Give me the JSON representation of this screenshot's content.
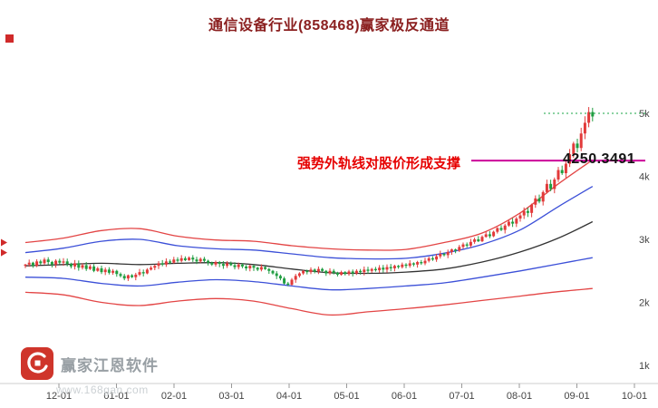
{
  "title": "通信设备行业(858468)赢家极反通道",
  "annotation": {
    "text": "强势外轨线对股价形成支撑",
    "value": "4250.3491",
    "level": 4.2504,
    "line_color": "#cc0099",
    "text_color": "#e60000"
  },
  "watermark": {
    "name": "赢家江恩软件",
    "site": "www.168gan.com"
  },
  "axes": {
    "x_labels": [
      "12-01",
      "01-01",
      "02-01",
      "03-01",
      "04-01",
      "05-01",
      "06-01",
      "07-01",
      "08-01",
      "09-01",
      "10-01"
    ],
    "y_labels": [
      {
        "label": "5k",
        "value": 5
      },
      {
        "label": "4k",
        "value": 4
      },
      {
        "label": "3k",
        "value": 3
      },
      {
        "label": "2k",
        "value": 2
      },
      {
        "label": "1k",
        "value": 1
      }
    ]
  },
  "colors": {
    "up_candle": "#e23a3a",
    "down_candle": "#1f9d40",
    "outer_line": "#e34545",
    "inner_line": "#3c50d8",
    "mid_line": "#333333",
    "dotted_resistance": "#18a544",
    "axis_line": "#cccccc",
    "tick": "#999999",
    "axis_text": "#444444",
    "marker_red": "#d02a2a"
  },
  "chart_data": {
    "type": "candlestick+lines",
    "title": "通信设备行业(858468)赢家极反通道",
    "ylim": [
      1,
      5.3
    ],
    "y_unit": "k",
    "closes": [
      2.6,
      2.63,
      2.58,
      2.65,
      2.62,
      2.68,
      2.64,
      2.6,
      2.66,
      2.63,
      2.65,
      2.61,
      2.57,
      2.62,
      2.55,
      2.59,
      2.53,
      2.57,
      2.5,
      2.54,
      2.48,
      2.52,
      2.47,
      2.5,
      2.45,
      2.42,
      2.38,
      2.43,
      2.4,
      2.44,
      2.48,
      2.46,
      2.52,
      2.55,
      2.58,
      2.62,
      2.6,
      2.65,
      2.63,
      2.68,
      2.66,
      2.7,
      2.67,
      2.71,
      2.68,
      2.65,
      2.69,
      2.66,
      2.63,
      2.6,
      2.64,
      2.61,
      2.58,
      2.62,
      2.59,
      2.56,
      2.6,
      2.57,
      2.54,
      2.58,
      2.55,
      2.52,
      2.56,
      2.53,
      2.5,
      2.46,
      2.42,
      2.38,
      2.3,
      2.28,
      2.36,
      2.42,
      2.46,
      2.5,
      2.48,
      2.52,
      2.49,
      2.53,
      2.5,
      2.46,
      2.5,
      2.47,
      2.44,
      2.48,
      2.45,
      2.49,
      2.46,
      2.5,
      2.48,
      2.52,
      2.5,
      2.53,
      2.51,
      2.55,
      2.52,
      2.56,
      2.54,
      2.58,
      2.56,
      2.6,
      2.58,
      2.62,
      2.6,
      2.64,
      2.62,
      2.66,
      2.7,
      2.68,
      2.73,
      2.77,
      2.75,
      2.8,
      2.84,
      2.82,
      2.88,
      2.92,
      2.9,
      2.96,
      3.0,
      2.97,
      3.04,
      3.08,
      3.05,
      3.12,
      3.18,
      3.15,
      3.22,
      3.28,
      3.25,
      3.33,
      3.38,
      3.45,
      3.42,
      3.55,
      3.65,
      3.6,
      3.75,
      3.88,
      3.8,
      3.95,
      4.1,
      4.05,
      4.2,
      4.35,
      4.52,
      4.45,
      4.68,
      4.85,
      5.02,
      4.95
    ],
    "anchor_ts": [
      0,
      10,
      20,
      30,
      40,
      50,
      60,
      70,
      80,
      90,
      100,
      110,
      120,
      130,
      140,
      149
    ],
    "series": [
      {
        "name": "outer-rail-up",
        "color": "#e34545",
        "anchors": [
          2.95,
          3.02,
          3.14,
          3.17,
          3.05,
          2.99,
          2.97,
          2.9,
          2.85,
          2.83,
          2.84,
          2.95,
          3.1,
          3.42,
          3.88,
          4.26
        ]
      },
      {
        "name": "inner-rail-up",
        "color": "#3c50d8",
        "anchors": [
          2.79,
          2.86,
          2.97,
          3.0,
          2.9,
          2.85,
          2.83,
          2.77,
          2.71,
          2.69,
          2.7,
          2.78,
          2.92,
          3.15,
          3.52,
          3.84
        ]
      },
      {
        "name": "mid-line",
        "color": "#333333",
        "anchors": [
          2.58,
          2.6,
          2.62,
          2.6,
          2.62,
          2.63,
          2.6,
          2.53,
          2.47,
          2.46,
          2.48,
          2.53,
          2.64,
          2.8,
          3.02,
          3.28
        ]
      },
      {
        "name": "inner-rail-down",
        "color": "#3c50d8",
        "anchors": [
          2.4,
          2.38,
          2.3,
          2.26,
          2.32,
          2.36,
          2.33,
          2.26,
          2.2,
          2.22,
          2.26,
          2.31,
          2.4,
          2.5,
          2.61,
          2.71
        ]
      },
      {
        "name": "outer-rail-down",
        "color": "#e34545",
        "anchors": [
          2.16,
          2.12,
          2.0,
          1.95,
          2.02,
          2.06,
          2.02,
          1.9,
          1.8,
          1.85,
          1.9,
          1.96,
          2.03,
          2.1,
          2.17,
          2.22
        ]
      }
    ],
    "support_level": 4.2504,
    "resistance_dotted_level": 5.0
  }
}
